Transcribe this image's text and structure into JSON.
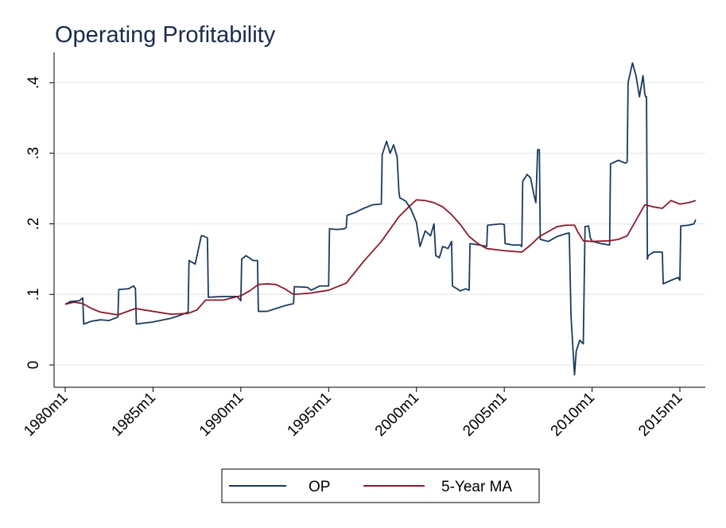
{
  "chart_data": {
    "type": "line",
    "title": "Operating Profitability",
    "xlabel": "",
    "ylabel": "",
    "xlim": [
      1980.0,
      2016.0
    ],
    "ylim": [
      -0.02,
      0.445
    ],
    "y_ticks": [
      0,
      0.1,
      0.2,
      0.3,
      0.4
    ],
    "y_tick_labels": [
      "0",
      ".1",
      ".2",
      ".3",
      ".4"
    ],
    "x_ticks": [
      1980,
      1985,
      1990,
      1995,
      2000,
      2005,
      2010,
      2015
    ],
    "x_tick_labels": [
      "1980m1",
      "1985m1",
      "1990m1",
      "1995m1",
      "2000m1",
      "2005m1",
      "2010m1",
      "2015m1"
    ],
    "grid": true,
    "legend_position": "bottom",
    "series": [
      {
        "name": "OP",
        "color": "#1a3a5c",
        "x": [
          1980.0,
          1980.3,
          1980.8,
          1981.0,
          1981.05,
          1981.5,
          1982.0,
          1982.5,
          1983.0,
          1983.05,
          1983.6,
          1983.9,
          1984.0,
          1984.05,
          1985.0,
          1986.0,
          1986.5,
          1987.0,
          1987.05,
          1987.4,
          1987.75,
          1987.85,
          1988.1,
          1988.15,
          1989.0,
          1989.8,
          1990.0,
          1990.05,
          1990.3,
          1990.7,
          1990.95,
          1991.0,
          1991.5,
          1992.0,
          1992.5,
          1993.0,
          1993.05,
          1993.8,
          1994.0,
          1994.5,
          1995.0,
          1995.05,
          1995.5,
          1995.9,
          1996.0,
          1996.05,
          1996.5,
          1997.0,
          1997.5,
          1998.0,
          1998.05,
          1998.3,
          1998.5,
          1998.7,
          1998.9,
          1999.0,
          1999.05,
          1999.4,
          1999.7,
          2000.0,
          2000.2,
          2000.5,
          2000.8,
          2001.0,
          2001.1,
          2001.3,
          2001.5,
          2001.8,
          2002.0,
          2002.05,
          2002.5,
          2002.8,
          2003.0,
          2003.05,
          2003.6,
          2004.0,
          2004.05,
          2004.8,
          2005.0,
          2005.05,
          2005.5,
          2005.9,
          2006.0,
          2006.05,
          2006.3,
          2006.5,
          2006.7,
          2006.8,
          2006.9,
          2007.0,
          2007.05,
          2007.5,
          2008.0,
          2008.5,
          2008.7,
          2008.8,
          2009.0,
          2009.1,
          2009.3,
          2009.5,
          2009.6,
          2009.8,
          2009.9,
          2010.0,
          2010.05,
          2010.5,
          2011.0,
          2011.05,
          2011.5,
          2011.9,
          2012.0,
          2012.05,
          2012.3,
          2012.5,
          2012.7,
          2012.9,
          2013.0,
          2013.05,
          2013.1,
          2013.15,
          2013.2,
          2013.5,
          2014.0,
          2014.05,
          2014.5,
          2014.9,
          2015.0,
          2015.05,
          2015.5,
          2015.8,
          2015.9
        ],
        "values": [
          0.086,
          0.09,
          0.091,
          0.095,
          0.058,
          0.062,
          0.064,
          0.063,
          0.068,
          0.107,
          0.108,
          0.112,
          0.108,
          0.058,
          0.061,
          0.066,
          0.07,
          0.075,
          0.148,
          0.143,
          0.183,
          0.183,
          0.18,
          0.096,
          0.097,
          0.097,
          0.091,
          0.15,
          0.155,
          0.148,
          0.148,
          0.076,
          0.076,
          0.08,
          0.084,
          0.087,
          0.111,
          0.11,
          0.106,
          0.112,
          0.112,
          0.193,
          0.192,
          0.193,
          0.195,
          0.212,
          0.216,
          0.222,
          0.227,
          0.228,
          0.298,
          0.317,
          0.3,
          0.312,
          0.295,
          0.246,
          0.237,
          0.232,
          0.22,
          0.202,
          0.168,
          0.19,
          0.183,
          0.2,
          0.155,
          0.152,
          0.168,
          0.165,
          0.175,
          0.112,
          0.105,
          0.108,
          0.106,
          0.172,
          0.17,
          0.168,
          0.198,
          0.2,
          0.199,
          0.172,
          0.17,
          0.17,
          0.168,
          0.26,
          0.27,
          0.265,
          0.24,
          0.23,
          0.305,
          0.305,
          0.178,
          0.175,
          0.182,
          0.186,
          0.187,
          0.07,
          -0.014,
          0.02,
          0.035,
          0.03,
          0.196,
          0.197,
          0.18,
          0.176,
          0.175,
          0.172,
          0.17,
          0.285,
          0.29,
          0.286,
          0.288,
          0.4,
          0.428,
          0.41,
          0.38,
          0.41,
          0.385,
          0.38,
          0.38,
          0.15,
          0.155,
          0.16,
          0.16,
          0.115,
          0.12,
          0.124,
          0.12,
          0.197,
          0.198,
          0.2,
          0.206
        ]
      },
      {
        "name": "5-Year MA",
        "color": "#8b1a2b",
        "x": [
          1980.0,
          1980.5,
          1981.0,
          1981.5,
          1982.0,
          1983.0,
          1984.0,
          1985.0,
          1986.0,
          1987.0,
          1987.5,
          1988.0,
          1989.0,
          1990.0,
          1990.5,
          1991.0,
          1991.5,
          1992.0,
          1992.5,
          1993.0,
          1994.0,
          1995.0,
          1996.0,
          1997.0,
          1998.0,
          1999.0,
          1999.6,
          2000.0,
          2000.5,
          2001.0,
          2001.5,
          2002.0,
          2002.5,
          2003.0,
          2003.5,
          2004.0,
          2005.0,
          2006.0,
          2006.5,
          2007.0,
          2008.0,
          2008.5,
          2009.0,
          2009.2,
          2009.5,
          2010.0,
          2011.0,
          2011.5,
          2012.0,
          2012.5,
          2013.0,
          2013.5,
          2014.0,
          2014.5,
          2015.0,
          2015.5,
          2015.9
        ],
        "values": [
          0.086,
          0.089,
          0.087,
          0.08,
          0.075,
          0.071,
          0.08,
          0.076,
          0.072,
          0.073,
          0.078,
          0.092,
          0.092,
          0.098,
          0.105,
          0.114,
          0.115,
          0.114,
          0.108,
          0.1,
          0.102,
          0.106,
          0.116,
          0.147,
          0.175,
          0.21,
          0.225,
          0.234,
          0.233,
          0.23,
          0.224,
          0.213,
          0.199,
          0.182,
          0.172,
          0.165,
          0.162,
          0.16,
          0.17,
          0.182,
          0.196,
          0.198,
          0.198,
          0.188,
          0.176,
          0.175,
          0.176,
          0.178,
          0.183,
          0.205,
          0.227,
          0.224,
          0.222,
          0.233,
          0.228,
          0.23,
          0.233
        ]
      }
    ]
  }
}
